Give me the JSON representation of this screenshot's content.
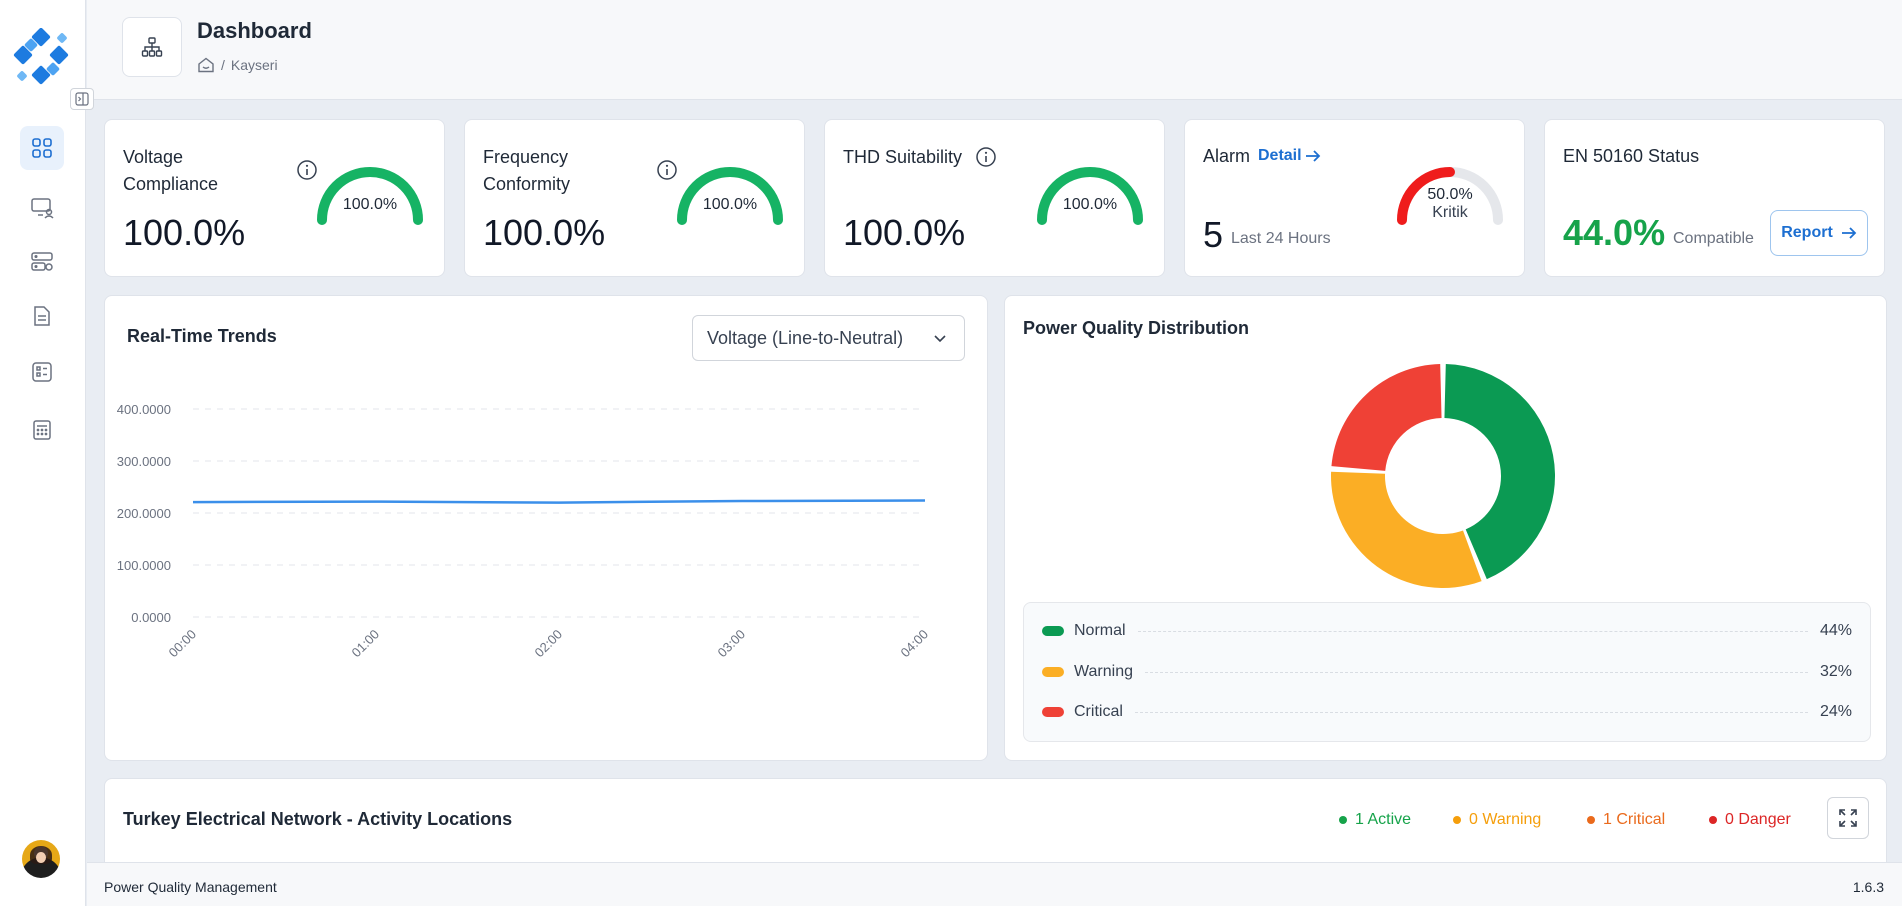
{
  "header": {
    "title": "Dashboard",
    "breadcrumb_location": "Kayseri",
    "breadcrumb_separator": "/"
  },
  "sidebar": {
    "items": [
      {
        "icon": "dashboard-grid-icon",
        "active": true
      },
      {
        "icon": "monitor-user-icon",
        "active": false
      },
      {
        "icon": "server-settings-icon",
        "active": false
      },
      {
        "icon": "document-icon",
        "active": false
      },
      {
        "icon": "checklist-icon",
        "active": false
      },
      {
        "icon": "calculator-icon",
        "active": false
      }
    ]
  },
  "kpis": {
    "voltage": {
      "title": "Voltage Compliance",
      "value": "100.0%",
      "gauge_label": "100.0%",
      "gauge_fraction": 1.0
    },
    "frequency": {
      "title": "Frequency Conformity",
      "value": "100.0%",
      "gauge_label": "100.0%",
      "gauge_fraction": 1.0
    },
    "thd": {
      "title": "THD Suitability",
      "value": "100.0%",
      "gauge_label": "100.0%",
      "gauge_fraction": 1.0
    },
    "alarm": {
      "title": "Alarm",
      "detail_label": "Detail",
      "count": "5",
      "period": "Last 24 Hours",
      "gauge_label": "50.0%",
      "gauge_sublabel": "Kritik",
      "gauge_fraction": 0.5
    },
    "en50160": {
      "title": "EN 50160 Status",
      "value": "44.0%",
      "status": "Compatible",
      "report_label": "Report"
    }
  },
  "trends": {
    "title": "Real-Time Trends",
    "selected_option": "Voltage (Line-to-Neutral)"
  },
  "chart_data": [
    {
      "type": "line",
      "x": [
        "00:00",
        "01:00",
        "02:00",
        "03:00",
        "04:00"
      ],
      "series": [
        {
          "values": [
            221,
            222,
            220,
            223,
            224
          ]
        }
      ],
      "yticks": [
        "0.0000",
        "100.0000",
        "200.0000",
        "300.0000",
        "400.0000"
      ],
      "ylim": [
        0,
        400
      ],
      "grid": true,
      "line_color": "#3b8fea"
    },
    {
      "type": "pie",
      "title": "Power Quality Distribution",
      "categories": [
        "Normal",
        "Warning",
        "Critical"
      ],
      "values": [
        44,
        32,
        24
      ],
      "labels": [
        "44%",
        "32%",
        "24%"
      ],
      "colors": [
        "#0b9a53",
        "#fbae25",
        "#ef4136"
      ],
      "donut": true,
      "legend": "bottom"
    }
  ],
  "map": {
    "title": "Turkey Electrical Network - Activity Locations",
    "statuses": [
      {
        "label": "1 Active",
        "color": "#16a34a"
      },
      {
        "label": "0 Warning",
        "color": "#f59e0b"
      },
      {
        "label": "1 Critical",
        "color": "#ea6a1c"
      },
      {
        "label": "0 Danger",
        "color": "#dc2626"
      }
    ]
  },
  "footer": {
    "app_name": "Power Quality Management",
    "version": "1.6.3"
  },
  "colors": {
    "accent": "#1d6fd1",
    "gauge_green": "#16b364",
    "gauge_red": "#ef1c1c",
    "gauge_track": "#e5e7eb"
  }
}
